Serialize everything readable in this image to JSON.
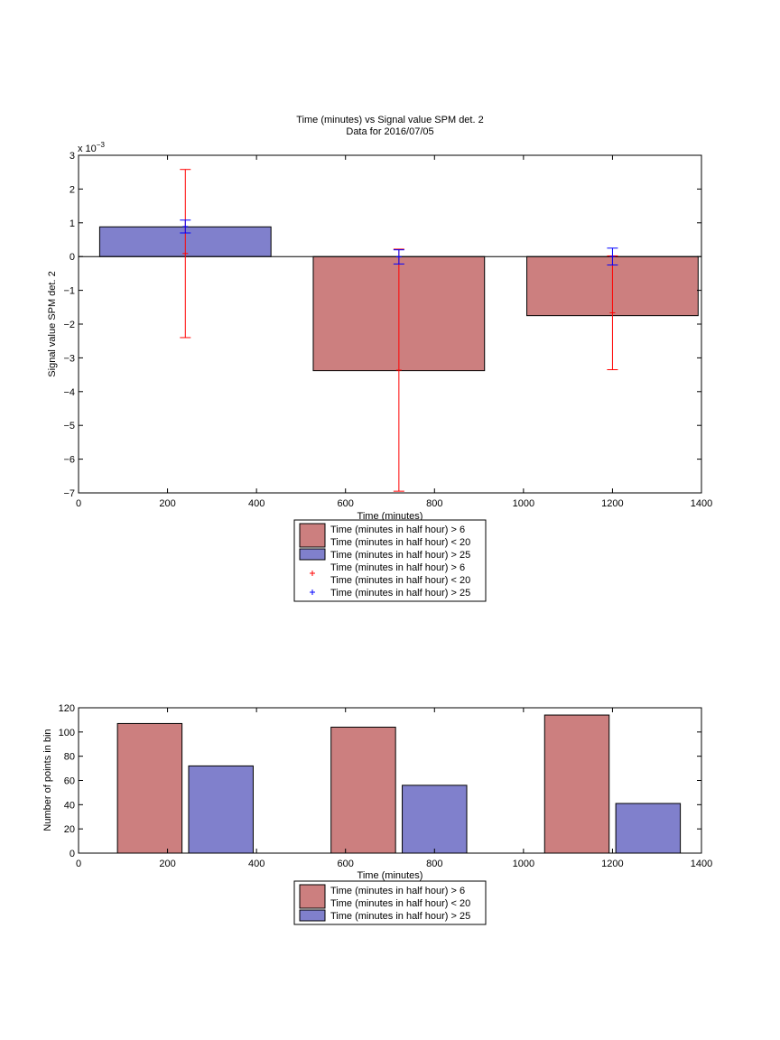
{
  "colors": {
    "red_bar": "#cc7f7f",
    "blue_bar": "#8080cc",
    "red_err": "#ff0000",
    "blue_err": "#0000ff"
  },
  "chart_data": [
    {
      "type": "bar",
      "title": "Time (minutes) vs Signal value SPM det. 2",
      "subtitle": "Data for 2016/07/05",
      "xlabel": "Time (minutes)",
      "ylabel": "Signal value SPM det. 2",
      "y_exponent_label": "x 10",
      "y_exponent_power": "−3",
      "xlim": [
        0,
        1400
      ],
      "ylim": [
        -7,
        3
      ],
      "x_ticks": [
        0,
        200,
        400,
        600,
        800,
        1000,
        1200,
        1400
      ],
      "y_ticks": [
        3,
        2,
        1,
        0,
        -1,
        -2,
        -3,
        -4,
        -5,
        -6,
        -7
      ],
      "y_tick_labels": [
        "3",
        "2",
        "1",
        "0",
        "−1",
        "−2",
        "−3",
        "−4",
        "−5",
        "−6",
        "−7"
      ],
      "bars": [
        {
          "x_center": 240,
          "width": 385,
          "value": 0.88,
          "color": "blue"
        },
        {
          "x_center": 720,
          "width": 385,
          "value": -3.38,
          "color": "red"
        },
        {
          "x_center": 1200,
          "width": 385,
          "value": -1.75,
          "color": "red"
        }
      ],
      "error_bars": [
        {
          "x": 240,
          "low": -2.4,
          "high": 2.58,
          "color": "red"
        },
        {
          "x": 240,
          "low": 0.7,
          "high": 1.08,
          "color": "blue"
        },
        {
          "x": 720,
          "low": -6.95,
          "high": 0.22,
          "color": "red"
        },
        {
          "x": 720,
          "low": -0.22,
          "high": 0.2,
          "color": "blue"
        },
        {
          "x": 1200,
          "low": -3.35,
          "high": 0.02,
          "color": "red"
        },
        {
          "x": 1200,
          "low": -0.25,
          "high": 0.25,
          "color": "blue"
        }
      ],
      "legend": {
        "placement": "below",
        "entries": [
          {
            "kind": "patch",
            "color": "red",
            "lines": [
              "Time (minutes in half hour) > 6",
              "Time (minutes in half hour) < 20"
            ]
          },
          {
            "kind": "patch",
            "color": "blue",
            "lines": [
              "Time (minutes in half hour) > 25"
            ]
          },
          {
            "kind": "marker",
            "color": "red",
            "lines": [
              "Time (minutes in half hour) > 6",
              "Time (minutes in half hour) < 20"
            ]
          },
          {
            "kind": "marker",
            "color": "blue",
            "lines": [
              "Time (minutes in half hour) > 25"
            ]
          }
        ]
      }
    },
    {
      "type": "bar",
      "title": "",
      "xlabel": "Time (minutes)",
      "ylabel": "Number of points in bin",
      "xlim": [
        0,
        1400
      ],
      "ylim": [
        0,
        120
      ],
      "x_ticks": [
        0,
        200,
        400,
        600,
        800,
        1000,
        1200,
        1400
      ],
      "y_ticks": [
        120,
        100,
        80,
        60,
        40,
        20,
        0
      ],
      "y_tick_labels": [
        "120",
        "100",
        "80",
        "60",
        "40",
        "20",
        "0"
      ],
      "bars": [
        {
          "x_center": 160,
          "width": 145,
          "value": 107,
          "color": "red"
        },
        {
          "x_center": 320,
          "width": 145,
          "value": 72,
          "color": "blue"
        },
        {
          "x_center": 640,
          "width": 145,
          "value": 104,
          "color": "red"
        },
        {
          "x_center": 800,
          "width": 145,
          "value": 56,
          "color": "blue"
        },
        {
          "x_center": 1120,
          "width": 145,
          "value": 114,
          "color": "red"
        },
        {
          "x_center": 1280,
          "width": 145,
          "value": 41,
          "color": "blue"
        }
      ],
      "legend": {
        "placement": "below",
        "entries": [
          {
            "kind": "patch",
            "color": "red",
            "lines": [
              "Time (minutes in half hour) > 6",
              "Time (minutes in half hour) < 20"
            ]
          },
          {
            "kind": "patch",
            "color": "blue",
            "lines": [
              "Time (minutes in half hour) > 25"
            ]
          }
        ]
      }
    }
  ]
}
